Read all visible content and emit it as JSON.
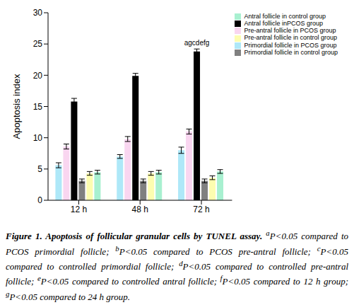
{
  "chart_data": {
    "type": "bar",
    "y_label": "Apoptosis index",
    "categories": [
      "12 h",
      "48 h",
      "72 h"
    ],
    "ylim": [
      0,
      30
    ],
    "yticks": [
      0,
      5,
      10,
      15,
      20,
      25,
      30
    ],
    "grid": false,
    "legend": "upper right",
    "series": [
      {
        "name": "Primordial follicle in PCOS group",
        "color": "#aee8f8",
        "values": [
          5.6,
          7.0,
          8.0
        ],
        "errors": [
          0.4,
          0.3,
          0.5
        ]
      },
      {
        "name": "Pre-antral follicle in PCOS group",
        "color": "#f9d6f0",
        "values": [
          8.6,
          9.8,
          11.0
        ],
        "errors": [
          0.4,
          0.4,
          0.4
        ]
      },
      {
        "name": "Antral follicle inPCOS group",
        "color": "#000000",
        "values": [
          15.8,
          19.9,
          23.8
        ],
        "errors": [
          0.5,
          0.4,
          0.4
        ]
      },
      {
        "name": "Primordial follicle in control group",
        "color": "#808080",
        "values": [
          3.1,
          3.1,
          3.1
        ],
        "errors": [
          0.3,
          0.3,
          0.3
        ]
      },
      {
        "name": "Pre-antral follicle in control group",
        "color": "#fdfdb0",
        "values": [
          4.3,
          4.3,
          3.6
        ],
        "errors": [
          0.3,
          0.3,
          0.3
        ]
      },
      {
        "name": "Antral follicle in control group",
        "color": "#a8f0d0",
        "values": [
          4.5,
          4.5,
          4.6
        ],
        "errors": [
          0.3,
          0.3,
          0.3
        ]
      }
    ],
    "annotations": [
      {
        "series": "Antral follicle inPCOS group",
        "category": "72 h",
        "text": "agcdefg"
      }
    ],
    "caption": {
      "title": "Figure 1. Apoptosis of follicular granular cells by TUNEL assay.",
      "notes": [
        {
          "mark": "a",
          "text": "P<0.05 compared to PCOS primordial follicle;"
        },
        {
          "mark": "b",
          "text": "P<0.05 compared to PCOS pre-antral follicle;"
        },
        {
          "mark": "c",
          "text": "P<0.05 compared to controlled primordial follicle;"
        },
        {
          "mark": "d",
          "text": "P<0.05 compared to controlled pre-antral follicle;"
        },
        {
          "mark": "e",
          "text": "P<0.05 compared to controlled antral follicle;"
        },
        {
          "mark": "f",
          "text": "P<0.05 compared to 12 h group;"
        },
        {
          "mark": "g",
          "text": "P<0.05 compared to 24 h group."
        }
      ]
    }
  }
}
